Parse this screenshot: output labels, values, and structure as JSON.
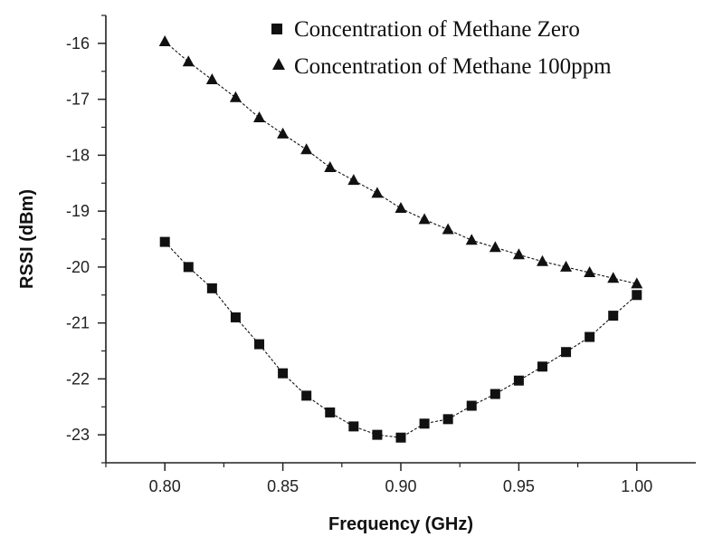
{
  "chart_data": {
    "type": "line",
    "xlabel": "Frequency (GHz)",
    "ylabel": "RSSI (dBm)",
    "xlim": [
      0.775,
      1.025
    ],
    "ylim": [
      -23.5,
      -15.5
    ],
    "xticks": [
      0.8,
      0.85,
      0.9,
      0.95,
      1.0
    ],
    "xtick_labels": [
      "0.80",
      "0.85",
      "0.90",
      "0.95",
      "1.00"
    ],
    "yticks": [
      -16,
      -17,
      -18,
      -19,
      -20,
      -21,
      -22,
      -23
    ],
    "ytick_labels": [
      "-16",
      "-17",
      "-18",
      "-19",
      "-20",
      "-21",
      "-22",
      "-23"
    ],
    "legend_position": "top-right",
    "x": [
      0.8,
      0.81,
      0.82,
      0.83,
      0.84,
      0.85,
      0.86,
      0.87,
      0.88,
      0.89,
      0.9,
      0.91,
      0.92,
      0.93,
      0.94,
      0.95,
      0.96,
      0.97,
      0.98,
      0.99,
      1.0
    ],
    "series": [
      {
        "name": "Concentration of Methane Zero",
        "marker": "square",
        "values": [
          -19.55,
          -20.0,
          -20.38,
          -20.9,
          -21.38,
          -21.9,
          -22.3,
          -22.6,
          -22.85,
          -23.0,
          -23.05,
          -22.8,
          -22.72,
          -22.48,
          -22.27,
          -22.03,
          -21.78,
          -21.52,
          -21.25,
          -20.87,
          -20.5
        ]
      },
      {
        "name": "Concentration of Methane 100ppm",
        "marker": "triangle",
        "values": [
          -15.97,
          -16.33,
          -16.65,
          -16.97,
          -17.33,
          -17.62,
          -17.9,
          -18.22,
          -18.45,
          -18.68,
          -18.95,
          -19.15,
          -19.33,
          -19.52,
          -19.65,
          -19.78,
          -19.9,
          -20.0,
          -20.1,
          -20.2,
          -20.3
        ]
      }
    ]
  }
}
